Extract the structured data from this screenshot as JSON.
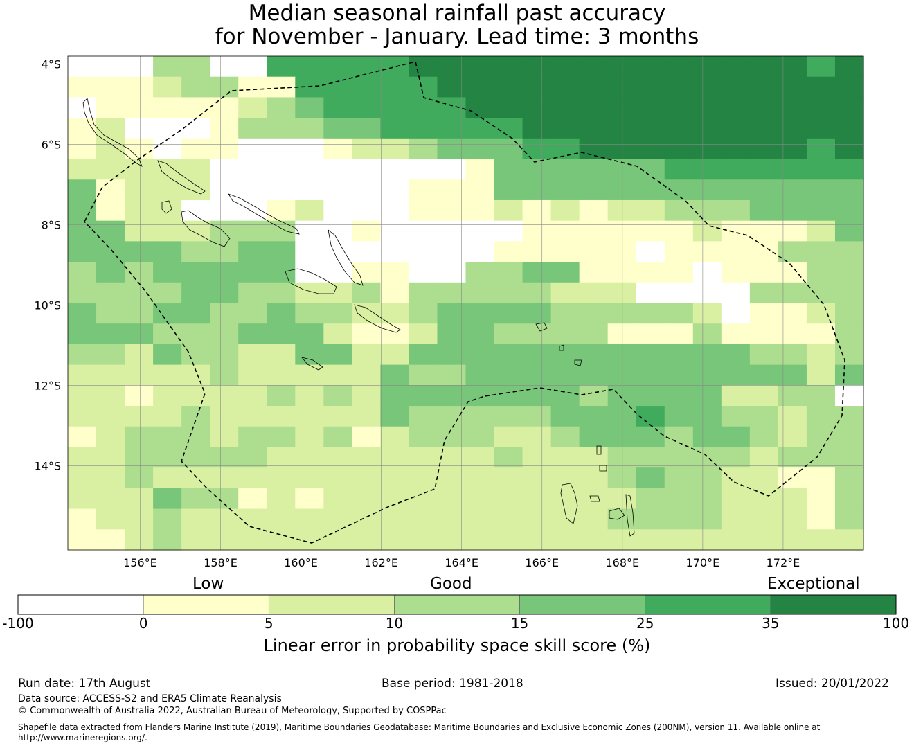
{
  "title": {
    "line1": "Median seasonal rainfall past accuracy",
    "line2": "for November - January. Lead time: 3 months"
  },
  "map": {
    "lat_labels": [
      "4°S",
      "6°S",
      "8°S",
      "10°S",
      "12°S",
      "14°S"
    ],
    "lat_values": [
      4,
      6,
      8,
      10,
      12,
      14
    ],
    "lon_labels": [
      "156°E",
      "158°E",
      "160°E",
      "162°E",
      "164°E",
      "166°E",
      "168°E",
      "170°E",
      "172°E"
    ],
    "lon_values": [
      156,
      158,
      160,
      162,
      164,
      166,
      168,
      170,
      172
    ],
    "extent": {
      "lon_min": 154.2,
      "lon_max": 174,
      "lat_min": 3.8,
      "lat_max": 16.1
    },
    "cell_size_deg": 0.833,
    "eez_boundary_style": "dashed",
    "gridlines": true
  },
  "colorbar": {
    "categories": [
      "Low",
      "Good",
      "Exceptional"
    ],
    "tick_labels": [
      "-100",
      "0",
      "5",
      "10",
      "15",
      "25",
      "35",
      "100"
    ],
    "colors": [
      "#ffffff",
      "#ffffcc",
      "#d9f0a3",
      "#addd8e",
      "#78c679",
      "#41ab5d",
      "#238443"
    ],
    "label": "Linear error in probability space skill score (%)"
  },
  "footer": {
    "run_date": "Run date: 17th August",
    "base_period": "Base period: 1981-2018",
    "issued": "Issued: 20/01/2022",
    "data_source": "Data source: ACCESS-S2 and ERA5 Climate Reanalysis",
    "copyright": "© Commonwealth of Australia 2022, Australian Bureau of Meteorology, Supported by COSPPac",
    "shapefile_line1": "Shapefile data extracted from Flanders Marine Institute (2019), Maritime Boundaries Geodatabase: Maritime Boundaries and Exclusive Economic Zones (200NM), version 11. Available online at",
    "shapefile_line2": "http://www.marineregions.org/."
  },
  "chart_data": {
    "type": "heatmap",
    "value_scale": "category index 0-6 (0:-100..0, 1:0..5, 2:5..10, 3:10..15, 4:15..25, 5:25..35, 6:35..100)",
    "grid_rows": [
      "0003300555556666666666666656",
      "1112331155555666666666666666",
      "0111112345555566666666666666",
      "1200013334455555666666666666",
      "1210110001223444556666666656",
      "2222200000000014444445555555",
      "4122200000001114444444444444",
      "4122000120001112121223334444",
      "4422233300100000111111211124",
      "4444334400000001111101111333",
      "3434444400110033441111011133",
      "3333443322313333322200003333",
      "4334433433223444433333201123",
      "4443334442112443333111311113",
      "3324332244224444444444443323",
      "2222232222243344444444444424",
      "2212222323244444443444422330",
      "2222322222243333344454433233",
      "1233323323123332234443443233",
      "2233333222222223222333332333",
      "2232222222222222222343322113",
      "2224331212222222222233322213",
      "1223222222222222222333322213",
      "1123222222222222222222222222"
    ]
  }
}
